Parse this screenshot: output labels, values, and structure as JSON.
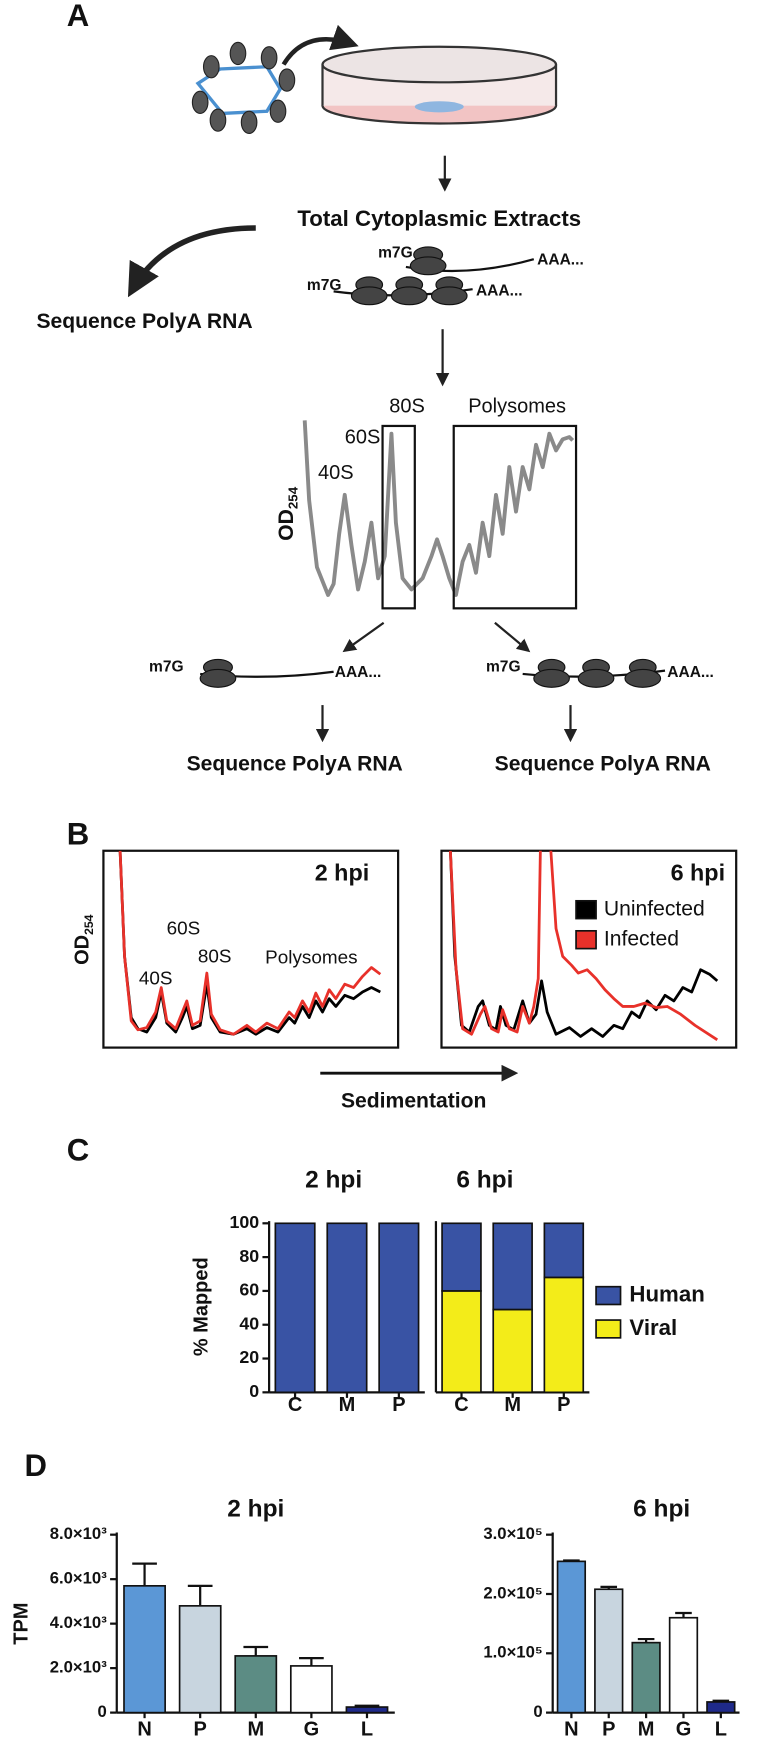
{
  "panel_labels": [
    "A",
    "B",
    "C",
    "D"
  ],
  "panel_a": {
    "step1": "Total Cytoplasmic Extracts",
    "mrna_cap": [
      "m7G",
      "m7G",
      "m7G",
      "m7G"
    ],
    "mrna_tail": [
      "AAA...",
      "AAA...",
      "AAA...",
      "AAA..."
    ],
    "sequence_labels": [
      "Sequence PolyA RNA",
      "Sequence PolyA RNA",
      "Sequence PolyA RNA"
    ],
    "profile": {
      "y_label": "OD",
      "y_label_sub": "254",
      "peaks": [
        "40S",
        "60S",
        "80S"
      ],
      "polysomes": "Polysomes"
    }
  },
  "panel_b": {
    "y_label": "OD",
    "y_label_sub": "254",
    "titles": [
      "2 hpi",
      "6 hpi"
    ],
    "peaks": [
      "40S",
      "60S",
      "80S"
    ],
    "polysomes": "Polysomes",
    "legend": [
      {
        "name": "Uninfected",
        "color": "#000000"
      },
      {
        "name": "Infected",
        "color": "#e8312a"
      }
    ],
    "x_label": "Sedimentation"
  },
  "chart_data": [
    {
      "type": "stacked_bar",
      "title": "2 hpi",
      "y_label": "% Mapped",
      "categories": [
        "C",
        "M",
        "P"
      ],
      "series": [
        {
          "color": "#3953a4",
          "values": [
            100,
            100,
            100
          ]
        }
      ],
      "ylim": [
        0,
        100
      ],
      "yticks": [
        0,
        20,
        40,
        60,
        80,
        100
      ]
    },
    {
      "type": "stacked_bar",
      "title": "6 hpi",
      "categories": [
        "C",
        "M",
        "P"
      ],
      "series": [
        {
          "name": "Viral",
          "color": "#f3ec19",
          "values": [
            60,
            49,
            68
          ]
        },
        {
          "name": "Human",
          "color": "#3953a4",
          "values": [
            40,
            51,
            32
          ]
        }
      ],
      "ylim": [
        0,
        100
      ],
      "legend": "right"
    },
    {
      "type": "bar",
      "title": "2 hpi",
      "y_label": "TPM",
      "categories": [
        "N",
        "P",
        "M",
        "G",
        "L"
      ],
      "values": [
        5700,
        4800,
        2550,
        2100,
        250
      ],
      "errors": [
        1000,
        900,
        400,
        350,
        60
      ],
      "colors": [
        "#5b97d6",
        "#c8d5df",
        "#5c8c84",
        "#ffffff",
        "#1f2a8a"
      ],
      "ylim": [
        0,
        8000
      ],
      "yticks": [
        0,
        {
          "value": 2000,
          "label": "2.0×10³"
        },
        {
          "value": 4000,
          "label": "4.0×10³"
        },
        {
          "value": 6000,
          "label": "6.0×10³"
        },
        {
          "value": 8000,
          "label": "8.0×10³"
        }
      ]
    },
    {
      "type": "bar",
      "title": "6 hpi",
      "categories": [
        "N",
        "P",
        "M",
        "G",
        "L"
      ],
      "values": [
        255000,
        208000,
        118000,
        160000,
        18000
      ],
      "errors": [
        1500,
        4000,
        6000,
        8000,
        2000
      ],
      "colors": [
        "#5b97d6",
        "#c8d5df",
        "#5c8c84",
        "#ffffff",
        "#1f2a8a"
      ],
      "ylim": [
        0,
        300000
      ],
      "yticks": [
        0,
        {
          "value": 100000,
          "label": "1.0×10⁵"
        },
        {
          "value": 200000,
          "label": "2.0×10⁵"
        },
        {
          "value": 300000,
          "label": "3.0×10⁵"
        }
      ]
    }
  ]
}
